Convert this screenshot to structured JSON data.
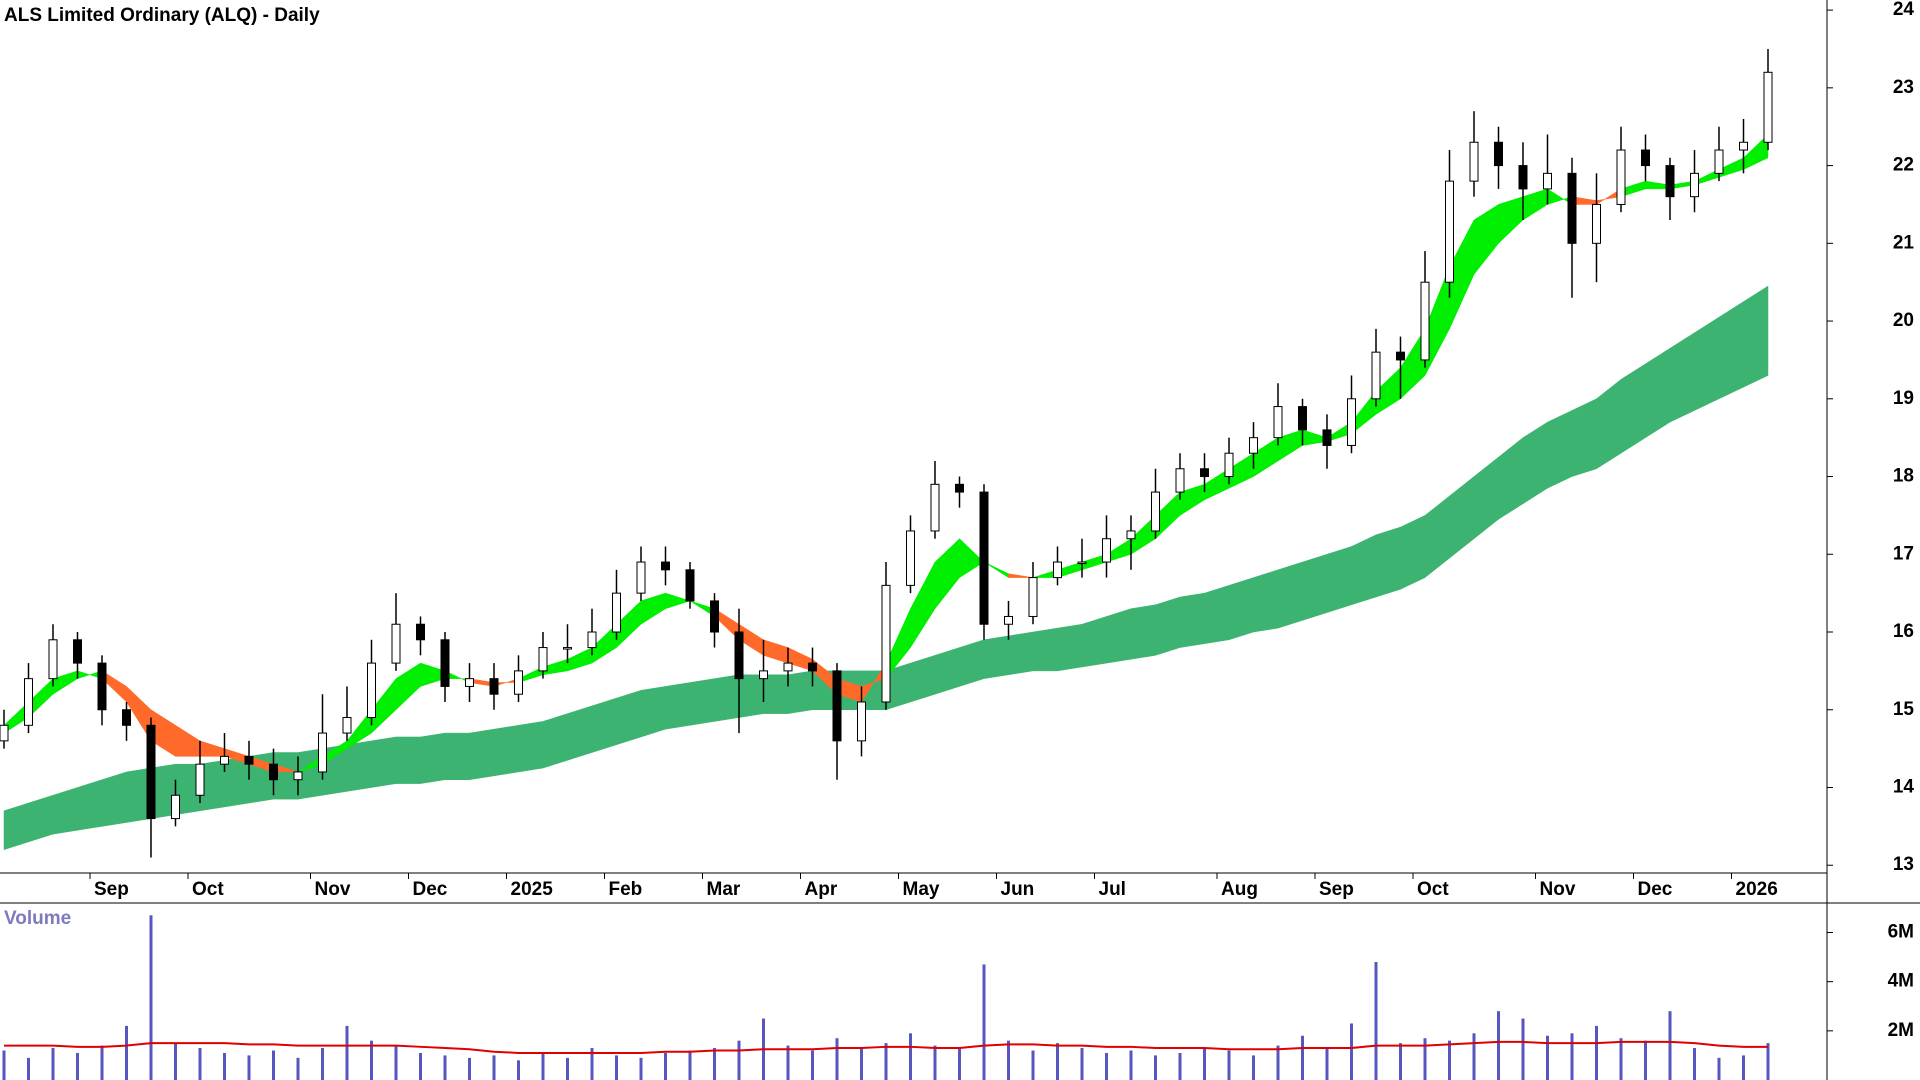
{
  "chart_data": [
    {
      "type": "candlestick",
      "title": "ALS Limited Ordinary (ALQ) - Daily",
      "categories": [
        null,
        null,
        null,
        null,
        "Sep",
        null,
        null,
        null,
        "Oct",
        null,
        null,
        null,
        null,
        "Nov",
        null,
        null,
        null,
        "Dec",
        null,
        null,
        null,
        "2025",
        null,
        null,
        null,
        "Feb",
        null,
        null,
        null,
        "Mar",
        null,
        null,
        null,
        "Apr",
        null,
        null,
        null,
        "May",
        null,
        null,
        null,
        "Jun",
        null,
        null,
        null,
        "Jul",
        null,
        null,
        null,
        null,
        "Aug",
        null,
        null,
        null,
        "Sep",
        null,
        null,
        null,
        "Oct",
        null,
        null,
        null,
        null,
        "Nov",
        null,
        null,
        null,
        "Dec",
        null,
        null,
        null,
        "2026",
        null
      ],
      "open": [
        14.6,
        14.8,
        15.4,
        15.9,
        15.6,
        15.0,
        14.8,
        13.6,
        13.9,
        14.3,
        14.4,
        14.3,
        14.1,
        14.2,
        14.7,
        14.9,
        15.6,
        16.1,
        15.9,
        15.3,
        15.4,
        15.2,
        15.5,
        15.8,
        15.8,
        16.0,
        16.5,
        16.9,
        16.8,
        16.4,
        16.0,
        15.4,
        15.5,
        15.6,
        15.5,
        14.6,
        15.1,
        16.6,
        17.3,
        17.9,
        17.8,
        16.1,
        16.2,
        16.7,
        16.9,
        16.9,
        17.2,
        17.3,
        17.8,
        18.1,
        18.0,
        18.3,
        18.5,
        18.9,
        18.6,
        18.4,
        19.0,
        19.6,
        19.5,
        20.5,
        21.8,
        22.3,
        22.0,
        21.7,
        21.9,
        21.0,
        21.5,
        22.2,
        22.0,
        21.6,
        21.9,
        22.2,
        22.3
      ],
      "high": [
        15.0,
        15.6,
        16.1,
        16.0,
        15.7,
        15.1,
        14.9,
        14.1,
        14.6,
        14.7,
        14.6,
        14.5,
        14.4,
        15.2,
        15.3,
        15.9,
        16.5,
        16.2,
        16.0,
        15.6,
        15.6,
        15.7,
        16.0,
        16.1,
        16.3,
        16.8,
        17.1,
        17.1,
        16.9,
        16.5,
        16.3,
        15.9,
        15.8,
        15.8,
        15.6,
        15.3,
        16.9,
        17.5,
        18.2,
        18.0,
        17.9,
        16.4,
        16.9,
        17.1,
        17.2,
        17.5,
        17.5,
        18.1,
        18.3,
        18.3,
        18.5,
        18.7,
        19.2,
        19.0,
        18.8,
        19.3,
        19.9,
        19.8,
        20.9,
        22.2,
        22.7,
        22.5,
        22.3,
        22.4,
        22.1,
        21.9,
        22.5,
        22.4,
        22.1,
        22.2,
        22.5,
        22.6,
        23.5
      ],
      "low": [
        14.5,
        14.7,
        15.3,
        15.4,
        14.8,
        14.6,
        13.1,
        13.5,
        13.8,
        14.2,
        14.1,
        13.9,
        13.9,
        14.1,
        14.6,
        14.8,
        15.5,
        15.7,
        15.1,
        15.1,
        15.0,
        15.1,
        15.4,
        15.6,
        15.7,
        15.9,
        16.4,
        16.6,
        16.3,
        15.8,
        14.7,
        15.1,
        15.3,
        15.3,
        14.1,
        14.4,
        15.0,
        16.5,
        17.2,
        17.6,
        15.9,
        15.9,
        16.1,
        16.6,
        16.7,
        16.7,
        16.8,
        17.2,
        17.7,
        17.8,
        17.9,
        18.1,
        18.4,
        18.4,
        18.1,
        18.3,
        18.9,
        19.0,
        19.4,
        20.3,
        21.6,
        21.7,
        21.3,
        21.5,
        20.3,
        20.5,
        21.4,
        21.8,
        21.3,
        21.4,
        21.8,
        21.9,
        22.2
      ],
      "close": [
        14.8,
        15.4,
        15.9,
        15.6,
        15.0,
        14.8,
        13.6,
        13.9,
        14.3,
        14.4,
        14.3,
        14.1,
        14.2,
        14.7,
        14.9,
        15.6,
        16.1,
        15.9,
        15.3,
        15.4,
        15.2,
        15.5,
        15.8,
        15.8,
        16.0,
        16.5,
        16.9,
        16.8,
        16.4,
        16.0,
        15.4,
        15.5,
        15.6,
        15.5,
        14.6,
        15.1,
        16.6,
        17.3,
        17.9,
        17.8,
        16.1,
        16.2,
        16.7,
        16.9,
        16.9,
        17.2,
        17.3,
        17.8,
        18.1,
        18.0,
        18.3,
        18.5,
        18.9,
        18.6,
        18.4,
        19.0,
        19.6,
        19.5,
        20.5,
        21.8,
        22.3,
        22.0,
        21.7,
        21.9,
        21.0,
        21.5,
        22.2,
        22.0,
        21.6,
        21.9,
        22.2,
        22.3,
        23.2
      ],
      "up_color": "#ffffff",
      "down_color": "#000000",
      "short_band": {
        "fast": [
          14.8,
          15.1,
          15.4,
          15.5,
          15.4,
          15.1,
          14.6,
          14.4,
          14.4,
          14.4,
          14.3,
          14.2,
          14.2,
          14.4,
          14.6,
          15.0,
          15.4,
          15.6,
          15.5,
          15.35,
          15.3,
          15.4,
          15.55,
          15.65,
          15.8,
          16.1,
          16.4,
          16.5,
          16.4,
          16.2,
          15.9,
          15.7,
          15.6,
          15.5,
          15.2,
          15.1,
          15.6,
          16.3,
          16.9,
          17.2,
          16.9,
          16.7,
          16.7,
          16.8,
          16.9,
          17.0,
          17.2,
          17.5,
          17.8,
          17.9,
          18.1,
          18.3,
          18.5,
          18.6,
          18.5,
          18.7,
          19.1,
          19.4,
          19.9,
          20.7,
          21.3,
          21.5,
          21.6,
          21.7,
          21.5,
          21.5,
          21.7,
          21.8,
          21.75,
          21.8,
          21.95,
          22.1,
          22.4
        ],
        "slow": [
          14.7,
          14.9,
          15.2,
          15.4,
          15.5,
          15.3,
          15.0,
          14.8,
          14.6,
          14.5,
          14.4,
          14.3,
          14.2,
          14.3,
          14.5,
          14.7,
          15.0,
          15.3,
          15.4,
          15.4,
          15.35,
          15.35,
          15.45,
          15.5,
          15.6,
          15.8,
          16.1,
          16.3,
          16.4,
          16.3,
          16.1,
          15.9,
          15.8,
          15.65,
          15.4,
          15.3,
          15.4,
          15.8,
          16.3,
          16.7,
          16.9,
          16.75,
          16.7,
          16.7,
          16.8,
          16.9,
          17.0,
          17.2,
          17.5,
          17.7,
          17.85,
          18.0,
          18.2,
          18.4,
          18.45,
          18.55,
          18.8,
          19.0,
          19.3,
          19.9,
          20.6,
          21.0,
          21.3,
          21.5,
          21.6,
          21.55,
          21.6,
          21.7,
          21.7,
          21.75,
          21.85,
          21.95,
          22.1
        ],
        "up_color": "#00ee00",
        "down_color": "#ff6a2a"
      },
      "long_band": {
        "upper": [
          13.7,
          13.8,
          13.9,
          14.0,
          14.1,
          14.2,
          14.25,
          14.3,
          14.3,
          14.35,
          14.4,
          14.45,
          14.45,
          14.5,
          14.55,
          14.6,
          14.65,
          14.65,
          14.7,
          14.7,
          14.75,
          14.8,
          14.85,
          14.95,
          15.05,
          15.15,
          15.25,
          15.3,
          15.35,
          15.4,
          15.45,
          15.45,
          15.45,
          15.5,
          15.5,
          15.5,
          15.5,
          15.6,
          15.7,
          15.8,
          15.9,
          15.95,
          16.0,
          16.05,
          16.1,
          16.2,
          16.3,
          16.35,
          16.45,
          16.5,
          16.6,
          16.7,
          16.8,
          16.9,
          17.0,
          17.1,
          17.25,
          17.35,
          17.5,
          17.75,
          18.0,
          18.25,
          18.5,
          18.7,
          18.85,
          19.0,
          19.25,
          19.45,
          19.65,
          19.85,
          20.05,
          20.25,
          20.45
        ],
        "lower": [
          13.2,
          13.3,
          13.4,
          13.45,
          13.5,
          13.55,
          13.6,
          13.65,
          13.7,
          13.75,
          13.8,
          13.85,
          13.85,
          13.9,
          13.95,
          14.0,
          14.05,
          14.05,
          14.1,
          14.1,
          14.15,
          14.2,
          14.25,
          14.35,
          14.45,
          14.55,
          14.65,
          14.75,
          14.8,
          14.85,
          14.9,
          14.95,
          14.95,
          15.0,
          15.0,
          15.0,
          15.0,
          15.1,
          15.2,
          15.3,
          15.4,
          15.45,
          15.5,
          15.5,
          15.55,
          15.6,
          15.65,
          15.7,
          15.8,
          15.85,
          15.9,
          16.0,
          16.05,
          16.15,
          16.25,
          16.35,
          16.45,
          16.55,
          16.7,
          16.95,
          17.2,
          17.45,
          17.65,
          17.85,
          18.0,
          18.1,
          18.3,
          18.5,
          18.7,
          18.85,
          19.0,
          19.15,
          19.3
        ],
        "color": "#3cb371"
      },
      "ylim": [
        12.9,
        24.13
      ],
      "yticks": [
        13,
        14,
        15,
        16,
        17,
        18,
        19,
        20,
        21,
        22,
        23,
        24
      ]
    },
    {
      "type": "bar",
      "title": "Volume",
      "color": "#5656c0",
      "values": [
        1200000,
        900000,
        1300000,
        1100000,
        1400000,
        2200000,
        6700000,
        1500000,
        1300000,
        1100000,
        1000000,
        1200000,
        900000,
        1300000,
        2200000,
        1600000,
        1400000,
        1100000,
        1000000,
        900000,
        1000000,
        800000,
        1100000,
        900000,
        1300000,
        1000000,
        900000,
        1100000,
        1200000,
        1300000,
        1600000,
        2500000,
        1400000,
        1200000,
        1700000,
        1300000,
        1500000,
        1900000,
        1400000,
        1300000,
        4700000,
        1600000,
        1200000,
        1500000,
        1300000,
        1100000,
        1200000,
        1000000,
        1100000,
        1300000,
        1200000,
        1000000,
        1400000,
        1800000,
        1300000,
        2300000,
        4800000,
        1500000,
        1700000,
        1600000,
        1900000,
        2800000,
        2500000,
        1800000,
        1900000,
        2200000,
        1700000,
        1600000,
        2800000,
        1300000,
        900000,
        1000000,
        1500000
      ],
      "moving_average": {
        "color": "#e00000",
        "values": [
          1400000,
          1400000,
          1400000,
          1350000,
          1350000,
          1400000,
          1500000,
          1500000,
          1500000,
          1500000,
          1450000,
          1450000,
          1400000,
          1400000,
          1400000,
          1400000,
          1400000,
          1350000,
          1300000,
          1250000,
          1150000,
          1100000,
          1100000,
          1100000,
          1100000,
          1100000,
          1100000,
          1150000,
          1150000,
          1200000,
          1200000,
          1250000,
          1250000,
          1250000,
          1300000,
          1300000,
          1350000,
          1350000,
          1300000,
          1300000,
          1400000,
          1450000,
          1450000,
          1400000,
          1400000,
          1350000,
          1350000,
          1300000,
          1300000,
          1300000,
          1250000,
          1250000,
          1250000,
          1300000,
          1300000,
          1300000,
          1400000,
          1400000,
          1400000,
          1450000,
          1500000,
          1550000,
          1550000,
          1500000,
          1500000,
          1500000,
          1550000,
          1550000,
          1550000,
          1500000,
          1400000,
          1350000,
          1350000
        ]
      },
      "ylim": [
        0,
        7200000
      ],
      "yticks": [
        {
          "value": 2000000,
          "label": "2M"
        },
        {
          "value": 4000000,
          "label": "4M"
        },
        {
          "value": 6000000,
          "label": "6M"
        }
      ]
    }
  ]
}
